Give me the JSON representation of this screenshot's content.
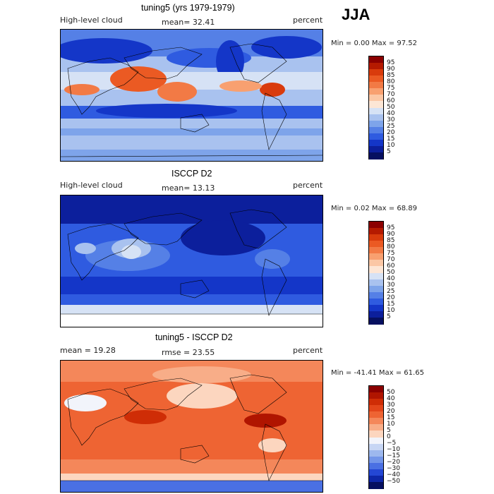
{
  "season": "JJA",
  "panels": [
    {
      "title": "tuning5 (yrs 1979-1979)",
      "left_label": "High-level cloud",
      "center_label": "mean=  32.41",
      "right_label": "percent",
      "range_label": "Min =    0.00 Max =   97.52",
      "colorbar": {
        "labels": [
          "95",
          "90",
          "85",
          "80",
          "75",
          "70",
          "60",
          "50",
          "40",
          "30",
          "25",
          "20",
          "15",
          "10",
          "5"
        ],
        "colors": [
          "#8b0000",
          "#b51a00",
          "#d93b0c",
          "#eb5a23",
          "#f27a45",
          "#f8a070",
          "#fbc7a5",
          "#fde6d5",
          "#d6e2f5",
          "#a9c2ef",
          "#7ea4ea",
          "#5580e6",
          "#2f5be0",
          "#1436c8",
          "#0c1f9c",
          "#061060"
        ]
      }
    },
    {
      "title": "ISCCP D2",
      "left_label": "High-level cloud",
      "center_label": "mean=  13.13",
      "right_label": "percent",
      "range_label": "Min =    0.02 Max =   68.89",
      "colorbar": {
        "labels": [
          "95",
          "90",
          "85",
          "80",
          "75",
          "70",
          "60",
          "50",
          "40",
          "30",
          "25",
          "20",
          "15",
          "10",
          "5"
        ],
        "colors": [
          "#8b0000",
          "#b51a00",
          "#d93b0c",
          "#eb5a23",
          "#f27a45",
          "#f8a070",
          "#fbc7a5",
          "#fde6d5",
          "#d6e2f5",
          "#a9c2ef",
          "#7ea4ea",
          "#5580e6",
          "#2f5be0",
          "#1436c8",
          "#0c1f9c",
          "#061060"
        ]
      }
    },
    {
      "title": "tuning5 - ISCCP D2",
      "left_label": "mean =   19.28",
      "center_label": "rmse =   23.55",
      "right_label": "percent",
      "range_label": "Min = -41.41 Max =   61.65",
      "colorbar": {
        "labels": [
          "50",
          "40",
          "30",
          "20",
          "15",
          "10",
          "5",
          "0",
          "−5",
          "−10",
          "−15",
          "−20",
          "−30",
          "−40",
          "−50"
        ],
        "colors": [
          "#8b0000",
          "#b01500",
          "#cf2d06",
          "#e3461a",
          "#ee6433",
          "#f4875a",
          "#f8ad88",
          "#fcd6bf",
          "#f2f4fb",
          "#c7d6f4",
          "#9db8ee",
          "#7396e9",
          "#4a70e3",
          "#2447d4",
          "#0e27a8",
          "#061060"
        ]
      }
    }
  ]
}
